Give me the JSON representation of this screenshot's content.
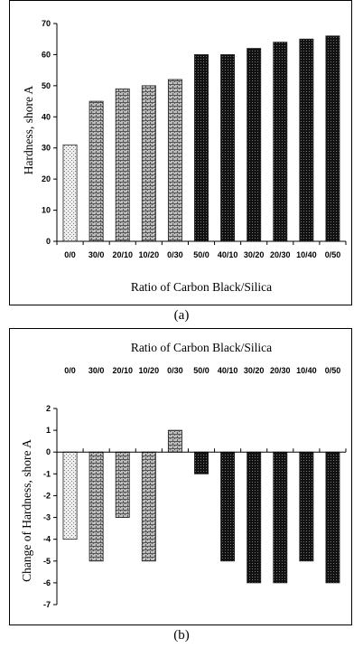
{
  "captions": {
    "a": "(a)",
    "b": "(b)"
  },
  "colors": {
    "light_bar": "#d4d4d4",
    "medium_bar": "#9a9a9a",
    "dark_bar": "#1a1a1a",
    "axis": "#000000"
  },
  "chart_data": [
    {
      "type": "bar",
      "categories": [
        "0/0",
        "30/0",
        "20/10",
        "10/20",
        "0/30",
        "50/0",
        "40/10",
        "30/20",
        "20/30",
        "10/40",
        "0/50"
      ],
      "values": [
        31,
        45,
        49,
        50,
        52,
        60,
        60,
        62,
        64,
        65,
        66
      ],
      "fill_group": [
        "light",
        "medium",
        "medium",
        "medium",
        "medium",
        "dark",
        "dark",
        "dark",
        "dark",
        "dark",
        "dark"
      ],
      "xlabel": "Ratio of Carbon Black/Silica",
      "ylabel": "Hardness, shore A",
      "ylim": [
        0,
        70
      ],
      "yticks": [
        "0",
        "10",
        "20",
        "30",
        "40",
        "50",
        "60",
        "70"
      ],
      "grid": false,
      "legend": "none"
    },
    {
      "type": "bar",
      "categories": [
        "0/0",
        "30/0",
        "20/10",
        "10/20",
        "0/30",
        "50/0",
        "40/10",
        "30/20",
        "20/30",
        "10/40",
        "0/50"
      ],
      "values": [
        -4,
        -5,
        -3,
        -5,
        1,
        -1,
        -5,
        -6,
        -6,
        -5,
        -6
      ],
      "fill_group": [
        "light",
        "medium",
        "medium",
        "medium",
        "medium",
        "dark",
        "dark",
        "dark",
        "dark",
        "dark",
        "dark"
      ],
      "xlabel": "Ratio of Carbon Black/Silica",
      "ylabel": "Change of Hardness, shore A",
      "ylim": [
        -7,
        2
      ],
      "yticks": [
        "-7",
        "-6",
        "-5",
        "-4",
        "-3",
        "-2",
        "-1",
        "0",
        "1",
        "2"
      ],
      "grid": false,
      "legend": "none"
    }
  ]
}
